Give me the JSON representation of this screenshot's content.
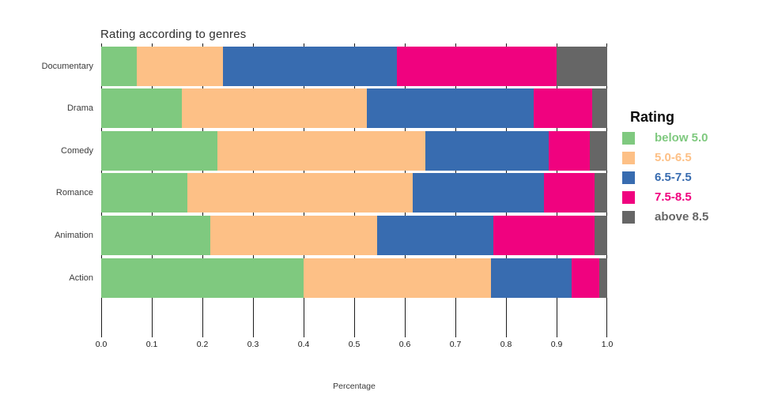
{
  "figure": {
    "title": "Rating according to genres",
    "xlabel": "Percentage",
    "x_ticks": [
      "0.0",
      "0.1",
      "0.2",
      "0.3",
      "0.4",
      "0.5",
      "0.6",
      "0.7",
      "0.8",
      "0.9",
      "1.0"
    ]
  },
  "legend": {
    "title": "Rating",
    "items": [
      {
        "label": "below 5.0",
        "color": "#7fc97f"
      },
      {
        "label": "5.0-6.5",
        "color": "#fdc086"
      },
      {
        "label": "6.5-7.5",
        "color": "#386cb0"
      },
      {
        "label": "7.5-8.5",
        "color": "#f0027f"
      },
      {
        "label": "above 8.5",
        "color": "#666666"
      }
    ]
  },
  "chart_data": {
    "type": "bar",
    "orientation": "horizontal",
    "stacked": true,
    "title": "Rating according to genres",
    "xlabel": "Percentage",
    "ylabel": "",
    "xlim": [
      0,
      1
    ],
    "x_tick_step": 0.1,
    "grid": "vertical tick lines at every 0.1, drawn behind bars",
    "legend_title": "Rating",
    "legend_position": "right",
    "categories": [
      "Documentary",
      "Drama",
      "Comedy",
      "Romance",
      "Animation",
      "Action"
    ],
    "series": [
      {
        "name": "below 5.0",
        "color": "#7fc97f",
        "values": [
          0.07,
          0.16,
          0.23,
          0.17,
          0.215,
          0.4
        ]
      },
      {
        "name": "5.0-6.5",
        "color": "#fdc086",
        "values": [
          0.17,
          0.365,
          0.41,
          0.445,
          0.33,
          0.37
        ]
      },
      {
        "name": "6.5-7.5",
        "color": "#386cb0",
        "values": [
          0.345,
          0.33,
          0.245,
          0.26,
          0.23,
          0.16
        ]
      },
      {
        "name": "7.5-8.5",
        "color": "#f0027f",
        "values": [
          0.315,
          0.115,
          0.08,
          0.1,
          0.2,
          0.055
        ]
      },
      {
        "name": "above 8.5",
        "color": "#666666",
        "values": [
          0.1,
          0.03,
          0.035,
          0.025,
          0.025,
          0.015
        ]
      }
    ]
  }
}
